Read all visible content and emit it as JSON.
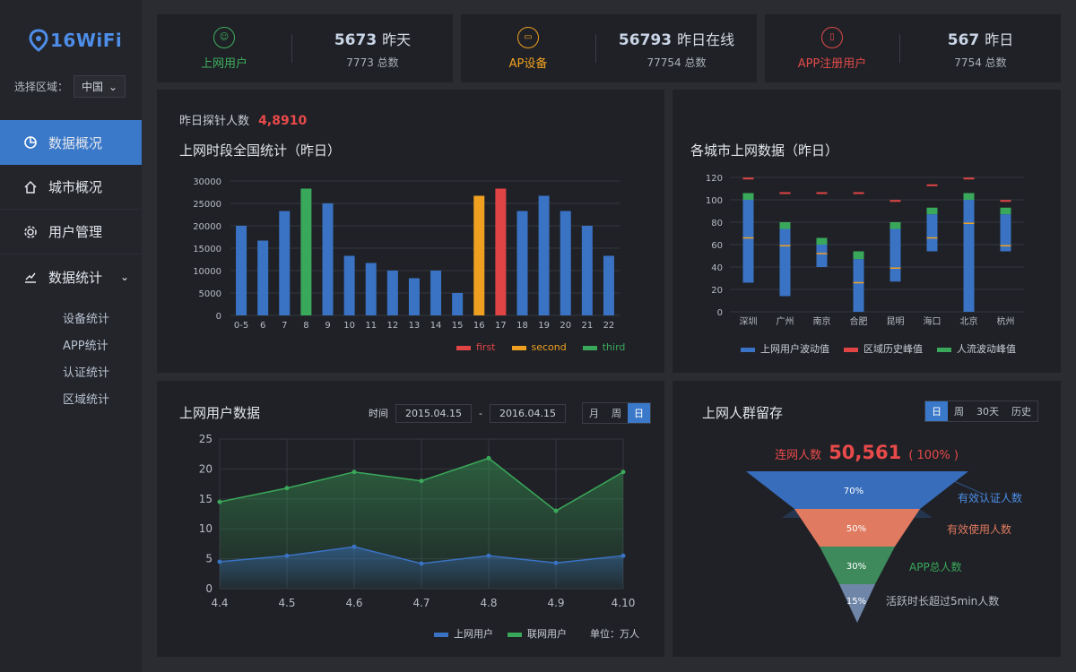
{
  "brand": {
    "logo_text": "16WiFi"
  },
  "region": {
    "label": "选择区域：",
    "value": "中国"
  },
  "nav": {
    "items": [
      {
        "label": "数据概况",
        "active": true
      },
      {
        "label": "城市概况"
      },
      {
        "label": "用户管理"
      },
      {
        "label": "数据统计"
      }
    ],
    "sub_items": [
      "设备统计",
      "APP统计",
      "认证统计",
      "区域统计"
    ]
  },
  "stats": [
    {
      "label": "上网用户",
      "main_value": "5673",
      "main_unit": "昨天",
      "sub_value": "7773",
      "sub_unit": "总数",
      "color": "#3fae5e"
    },
    {
      "label": "AP设备",
      "main_value": "56793",
      "main_unit": "昨日在线",
      "sub_value": "77754",
      "sub_unit": "总数",
      "color": "#f0a020"
    },
    {
      "label": "APP注册用户",
      "main_value": "567",
      "main_unit": "昨日",
      "sub_value": "7754",
      "sub_unit": "总数",
      "color": "#e04a4a"
    }
  ],
  "panel1": {
    "probe_label": "昨日探针人数",
    "probe_value": "4,8910",
    "title": "上网时段全国统计（昨日）",
    "legend": [
      {
        "name": "first",
        "color": "#e04444"
      },
      {
        "name": "second",
        "color": "#f0a020"
      },
      {
        "name": "third",
        "color": "#3aa85a"
      }
    ]
  },
  "panel2": {
    "title": "各城市上网数据（昨日）",
    "legend": [
      {
        "name": "上网用户波动值",
        "color": "#3a72c4"
      },
      {
        "name": "区域历史峰值",
        "color": "#e04444"
      },
      {
        "name": "人流波动峰值",
        "color": "#3aa85a"
      }
    ]
  },
  "panel3": {
    "title": "上网用户数据",
    "time_label": "时间",
    "date_from": "2015.04.15",
    "date_sep": "-",
    "date_to": "2016.04.15",
    "tabs": [
      "月",
      "周",
      "日"
    ],
    "active_tab": 2,
    "legend": [
      {
        "name": "上网用户",
        "color": "#3a72c4"
      },
      {
        "name": "联网用户",
        "color": "#3aa85a"
      }
    ],
    "unit": "单位：万人"
  },
  "panel4": {
    "title": "上网人群留存",
    "tabs": [
      "日",
      "周",
      "30天",
      "历史"
    ],
    "active_tab": 0,
    "head_label": "连网人数",
    "head_value": "50,561",
    "head_pct": "( 100% )",
    "levels": [
      {
        "pct": "70%",
        "label": "有效认证人数",
        "color": "#3a72c4"
      },
      {
        "pct": "50%",
        "label": "有效使用人数",
        "color": "#e07a60"
      },
      {
        "pct": "30%",
        "label": "APP总人数",
        "color": "#3e8a5c"
      },
      {
        "pct": "15%",
        "label": "活跃时长超过5min人数",
        "color": "#6f86a8"
      }
    ]
  },
  "chart_data": [
    {
      "type": "bar",
      "title": "上网时段全国统计（昨日）",
      "categories": [
        "0-5",
        "6",
        "7",
        "8",
        "9",
        "10",
        "11",
        "12",
        "13",
        "14",
        "15",
        "16",
        "17",
        "18",
        "19",
        "20",
        "21",
        "22"
      ],
      "values": [
        20000,
        16700,
        23300,
        28300,
        25000,
        13300,
        11700,
        10000,
        8300,
        10000,
        5000,
        26700,
        28300,
        23300,
        26700,
        23300,
        20000,
        13300
      ],
      "highlight": {
        "8": "third",
        "16": "second",
        "17": "first"
      },
      "ylim": [
        0,
        30000
      ],
      "yticks": [
        0,
        5000,
        10000,
        15000,
        20000,
        25000,
        30000
      ],
      "colors": {
        "default": "#3a72c4",
        "first": "#e04444",
        "second": "#f0a020",
        "third": "#3aa85a"
      }
    },
    {
      "type": "bar",
      "title": "各城市上网数据（昨日）",
      "categories": [
        "深圳",
        "广州",
        "南京",
        "合肥",
        "昆明",
        "海口",
        "北京",
        "杭州"
      ],
      "low": [
        26,
        14,
        40,
        0,
        27,
        54,
        0,
        54
      ],
      "high": [
        100,
        74,
        60,
        47,
        74,
        87,
        100,
        87
      ],
      "mid": [
        66,
        59,
        52,
        26,
        39,
        66,
        79,
        59
      ],
      "green_top": [
        106,
        80,
        66,
        54,
        80,
        93,
        106,
        93
      ],
      "peak": [
        119,
        106,
        106,
        106,
        99,
        113,
        119,
        99
      ],
      "ylim": [
        0,
        120
      ],
      "yticks": [
        0,
        20,
        40,
        60,
        80,
        100,
        120
      ]
    },
    {
      "type": "area",
      "title": "上网用户数据",
      "x": [
        "4.4",
        "4.5",
        "4.6",
        "4.7",
        "4.8",
        "4.9",
        "4.10"
      ],
      "series": [
        {
          "name": "上网用户",
          "values": [
            4.5,
            5.5,
            7.0,
            4.2,
            5.5,
            4.3,
            5.5
          ]
        },
        {
          "name": "联网用户",
          "values": [
            14.5,
            16.8,
            19.5,
            18.0,
            21.8,
            13.0,
            19.5
          ]
        }
      ],
      "ylim": [
        0,
        25
      ],
      "yticks": [
        0,
        5,
        10,
        15,
        20,
        25
      ]
    }
  ]
}
